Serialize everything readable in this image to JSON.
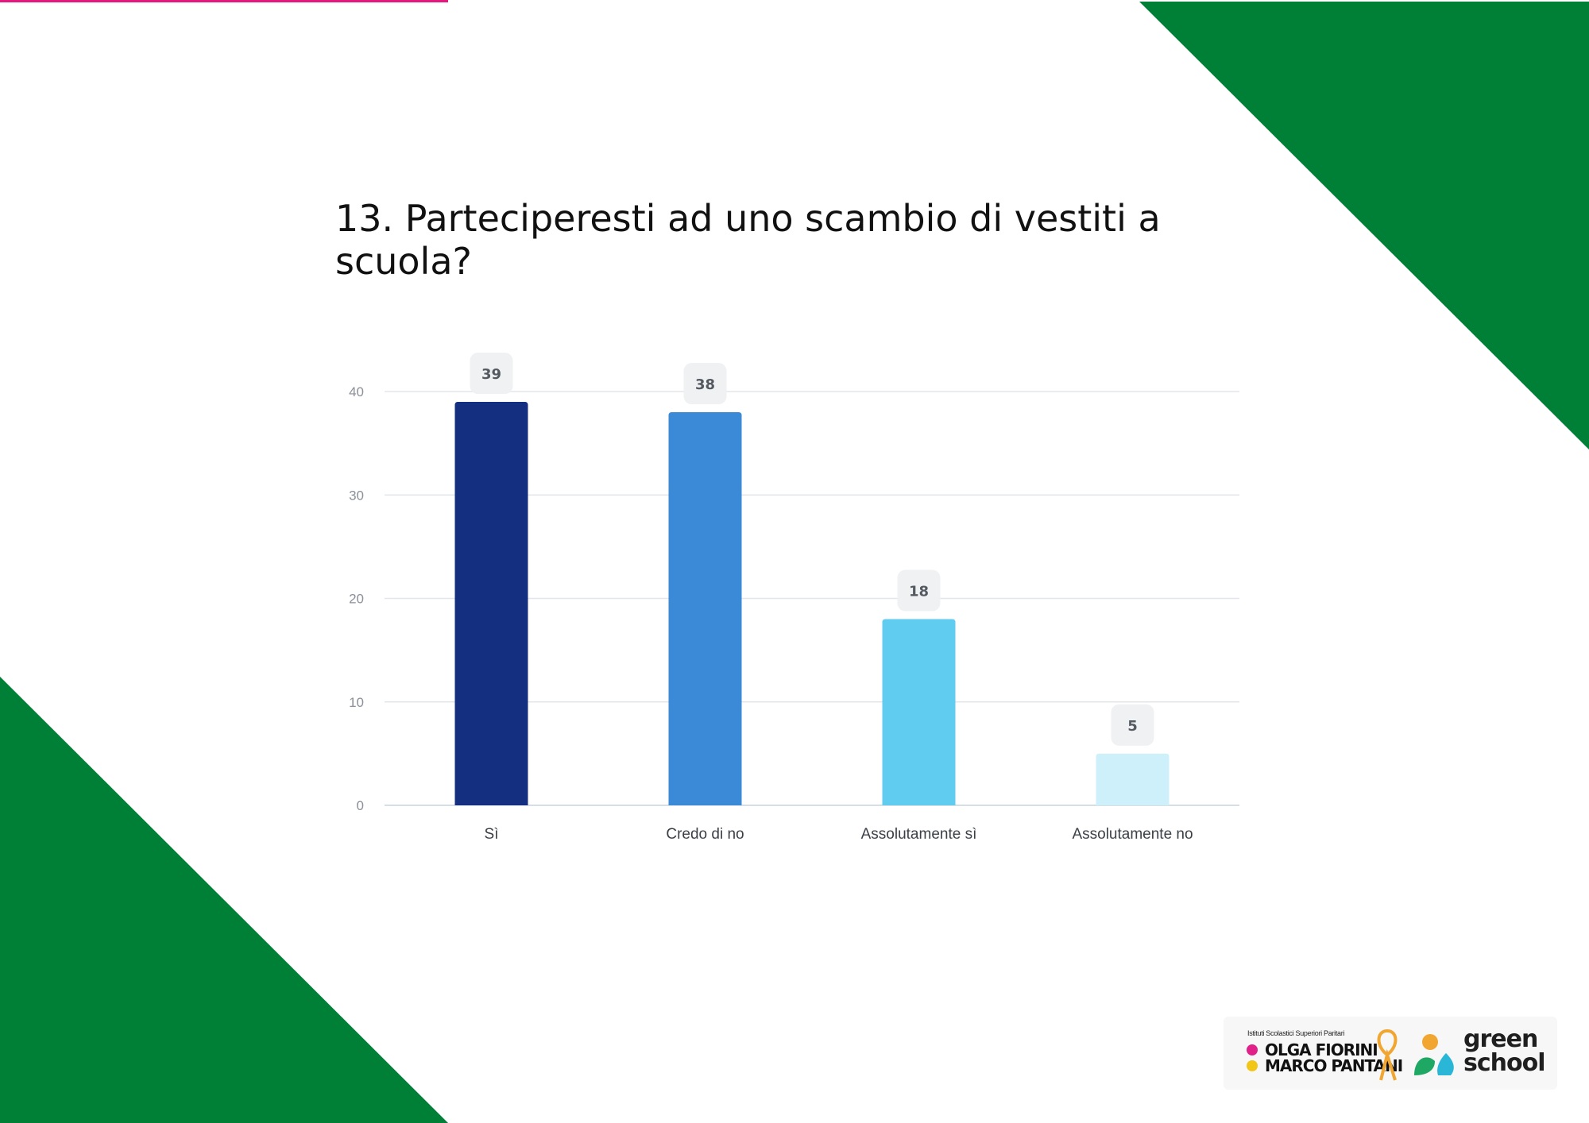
{
  "slide": {
    "title": "13. Parteciperesti ad uno scambio di vestiti a scuola?"
  },
  "colors": {
    "triangle_green": "#007f36",
    "accent_pink": "#e6187e",
    "grid": "#e3e6ea",
    "label_box": "#f0f1f2"
  },
  "chart_data": {
    "type": "bar",
    "title": "",
    "xlabel": "",
    "ylabel": "",
    "categories": [
      "Sì",
      "Credo di no",
      "Assolutamente sì",
      "Assolutamente no"
    ],
    "values": [
      39,
      38,
      18,
      5
    ],
    "bar_colors": [
      "#142f80",
      "#3a8ad8",
      "#60ccf0",
      "#cdf0fa"
    ],
    "ylim": [
      0,
      40
    ],
    "yticks": [
      0,
      10,
      20,
      30,
      40
    ],
    "grid": true,
    "legend": "none",
    "data_labels": true
  },
  "logos": {
    "school_small_text": "Istituti Scolastici Superiori Paritari",
    "school_name_line1": "OLGA FIORINI",
    "school_name_line2": "MARCO PANTANI",
    "green_school_line1": "green",
    "green_school_line2": "school"
  }
}
